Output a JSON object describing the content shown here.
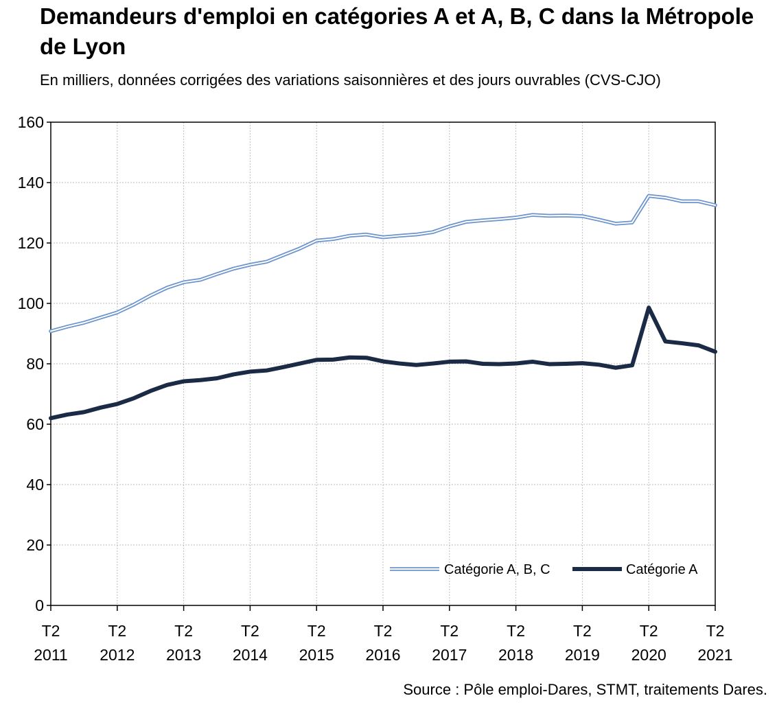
{
  "title": "Demandeurs d'emploi en catégories A et A, B, C dans la Métropole de Lyon",
  "subtitle": "En milliers, données corrigées des variations saisonnières et des jours ouvrables (CVS-CJO)",
  "source": "Source : Pôle emploi-Dares, STMT, traitements Dares.",
  "colors": {
    "abc": "#6b93cc",
    "a": "#1b2a45",
    "grid": "#bdbdbd",
    "axis": "#000000"
  },
  "chart_data": {
    "type": "line",
    "title": "Demandeurs d'emploi en catégories A et A, B, C dans la Métropole de Lyon",
    "subtitle": "En milliers, données corrigées des variations saisonnières et des jours ouvrables (CVS-CJO)",
    "xlabel": "",
    "ylabel": "",
    "ylim": [
      0,
      160
    ],
    "yticks": [
      0,
      20,
      40,
      60,
      80,
      100,
      120,
      140,
      160
    ],
    "grid": true,
    "legend_position": "bottom-right",
    "x_tick_labels": [
      {
        "top": "T2",
        "bottom": "2011"
      },
      {
        "top": "T2",
        "bottom": "2012"
      },
      {
        "top": "T2",
        "bottom": "2013"
      },
      {
        "top": "T2",
        "bottom": "2014"
      },
      {
        "top": "T2",
        "bottom": "2015"
      },
      {
        "top": "T2",
        "bottom": "2016"
      },
      {
        "top": "T2",
        "bottom": "2017"
      },
      {
        "top": "T2",
        "bottom": "2018"
      },
      {
        "top": "T2",
        "bottom": "2019"
      },
      {
        "top": "T2",
        "bottom": "2020"
      },
      {
        "top": "T2",
        "bottom": "2021"
      }
    ],
    "x": [
      "2011-T2",
      "2011-T3",
      "2011-T4",
      "2012-T1",
      "2012-T2",
      "2012-T3",
      "2012-T4",
      "2013-T1",
      "2013-T2",
      "2013-T3",
      "2013-T4",
      "2014-T1",
      "2014-T2",
      "2014-T3",
      "2014-T4",
      "2015-T1",
      "2015-T2",
      "2015-T3",
      "2015-T4",
      "2016-T1",
      "2016-T2",
      "2016-T3",
      "2016-T4",
      "2017-T1",
      "2017-T2",
      "2017-T3",
      "2017-T4",
      "2018-T1",
      "2018-T2",
      "2018-T3",
      "2018-T4",
      "2019-T1",
      "2019-T2",
      "2019-T3",
      "2019-T4",
      "2020-T1",
      "2020-T2",
      "2020-T3",
      "2020-T4",
      "2021-T1",
      "2021-T2"
    ],
    "series": [
      {
        "name": "Catégorie A, B, C",
        "style": "double",
        "values": [
          90.8,
          92.3,
          93.6,
          95.3,
          97.0,
          99.6,
          102.6,
          105.2,
          107.0,
          107.8,
          109.7,
          111.5,
          112.8,
          113.8,
          116.0,
          118.2,
          120.8,
          121.3,
          122.4,
          122.8,
          121.9,
          122.4,
          122.8,
          123.6,
          125.5,
          127.0,
          127.5,
          127.9,
          128.4,
          129.3,
          129.0,
          129.1,
          128.9,
          127.7,
          126.4,
          126.8,
          135.6,
          135.0,
          133.8,
          133.8,
          132.5
        ]
      },
      {
        "name": "Catégorie A",
        "style": "thick",
        "values": [
          62.0,
          63.2,
          64.0,
          65.5,
          66.7,
          68.6,
          71.0,
          73.0,
          74.2,
          74.6,
          75.2,
          76.5,
          77.4,
          77.8,
          78.9,
          80.1,
          81.3,
          81.4,
          82.1,
          82.0,
          80.8,
          80.1,
          79.6,
          80.1,
          80.7,
          80.8,
          80.0,
          79.9,
          80.1,
          80.7,
          79.9,
          80.0,
          80.2,
          79.7,
          78.7,
          79.5,
          98.6,
          87.4,
          86.8,
          86.1,
          84.0
        ]
      }
    ]
  }
}
